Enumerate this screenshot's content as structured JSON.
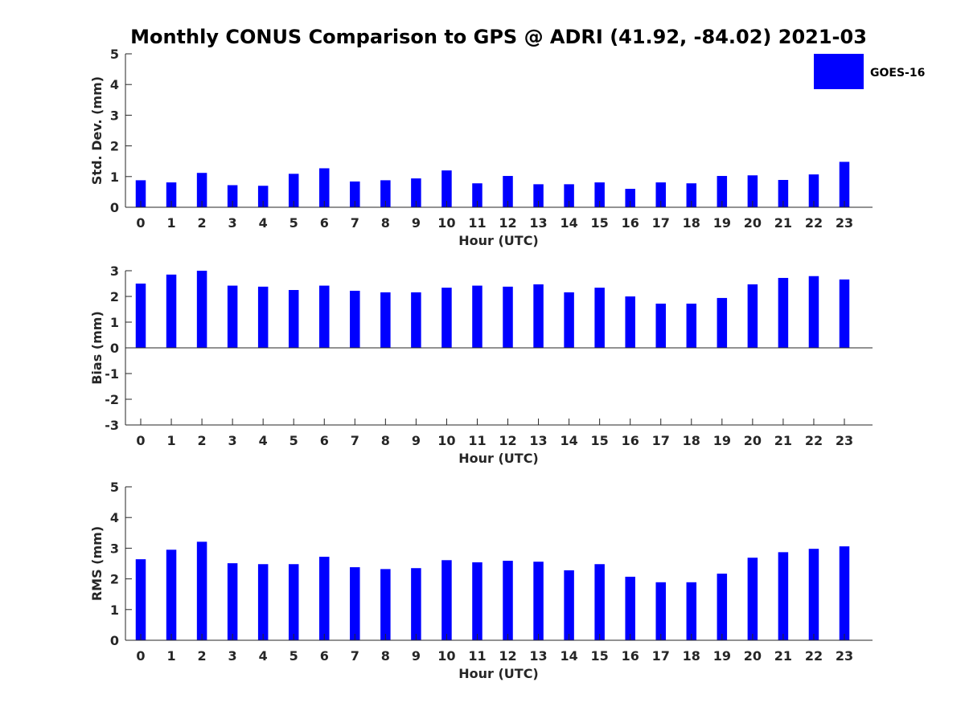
{
  "title": "Monthly CONUS Comparison to GPS @ ADRI (41.92, -84.02) 2021-03",
  "legend": {
    "label": "GOES-16",
    "color": "#0000ff"
  },
  "chart_data": [
    {
      "type": "bar",
      "xlabel": "Hour (UTC)",
      "ylabel": "Std. Dev. (mm)",
      "ylim": [
        0,
        5
      ],
      "yticks": [
        0,
        1,
        2,
        3,
        4,
        5
      ],
      "legend_position": "top-right",
      "categories": [
        "0",
        "1",
        "2",
        "3",
        "4",
        "5",
        "6",
        "7",
        "8",
        "9",
        "10",
        "11",
        "12",
        "13",
        "14",
        "15",
        "16",
        "17",
        "18",
        "19",
        "20",
        "21",
        "22",
        "23"
      ],
      "series": [
        {
          "name": "GOES-16",
          "color": "#0000ff",
          "values": [
            0.88,
            0.81,
            1.12,
            0.72,
            0.7,
            1.09,
            1.27,
            0.84,
            0.88,
            0.94,
            1.2,
            0.78,
            1.02,
            0.75,
            0.75,
            0.81,
            0.6,
            0.81,
            0.78,
            1.02,
            1.04,
            0.89,
            1.07,
            1.48
          ]
        }
      ]
    },
    {
      "type": "bar",
      "xlabel": "Hour (UTC)",
      "ylabel": "Bias (mm)",
      "ylim": [
        -3,
        3
      ],
      "yticks": [
        -3,
        -2,
        -1,
        0,
        1,
        2,
        3
      ],
      "categories": [
        "0",
        "1",
        "2",
        "3",
        "4",
        "5",
        "6",
        "7",
        "8",
        "9",
        "10",
        "11",
        "12",
        "13",
        "14",
        "15",
        "16",
        "17",
        "18",
        "19",
        "20",
        "21",
        "22",
        "23"
      ],
      "series": [
        {
          "name": "GOES-16",
          "color": "#0000ff",
          "values": [
            2.5,
            2.85,
            3.0,
            2.42,
            2.38,
            2.25,
            2.42,
            2.22,
            2.16,
            2.16,
            2.34,
            2.42,
            2.38,
            2.47,
            2.16,
            2.34,
            2.0,
            1.72,
            1.72,
            1.94,
            2.47,
            2.72,
            2.79,
            2.66
          ]
        }
      ]
    },
    {
      "type": "bar",
      "xlabel": "Hour (UTC)",
      "ylabel": "RMS (mm)",
      "ylim": [
        0,
        5
      ],
      "yticks": [
        0,
        1,
        2,
        3,
        4,
        5
      ],
      "categories": [
        "0",
        "1",
        "2",
        "3",
        "4",
        "5",
        "6",
        "7",
        "8",
        "9",
        "10",
        "11",
        "12",
        "13",
        "14",
        "15",
        "16",
        "17",
        "18",
        "19",
        "20",
        "21",
        "22",
        "23"
      ],
      "series": [
        {
          "name": "GOES-16",
          "color": "#0000ff",
          "values": [
            2.64,
            2.95,
            3.21,
            2.51,
            2.48,
            2.48,
            2.72,
            2.38,
            2.32,
            2.35,
            2.61,
            2.54,
            2.59,
            2.56,
            2.28,
            2.48,
            2.07,
            1.89,
            1.89,
            2.17,
            2.69,
            2.87,
            2.98,
            3.06
          ]
        }
      ]
    }
  ]
}
